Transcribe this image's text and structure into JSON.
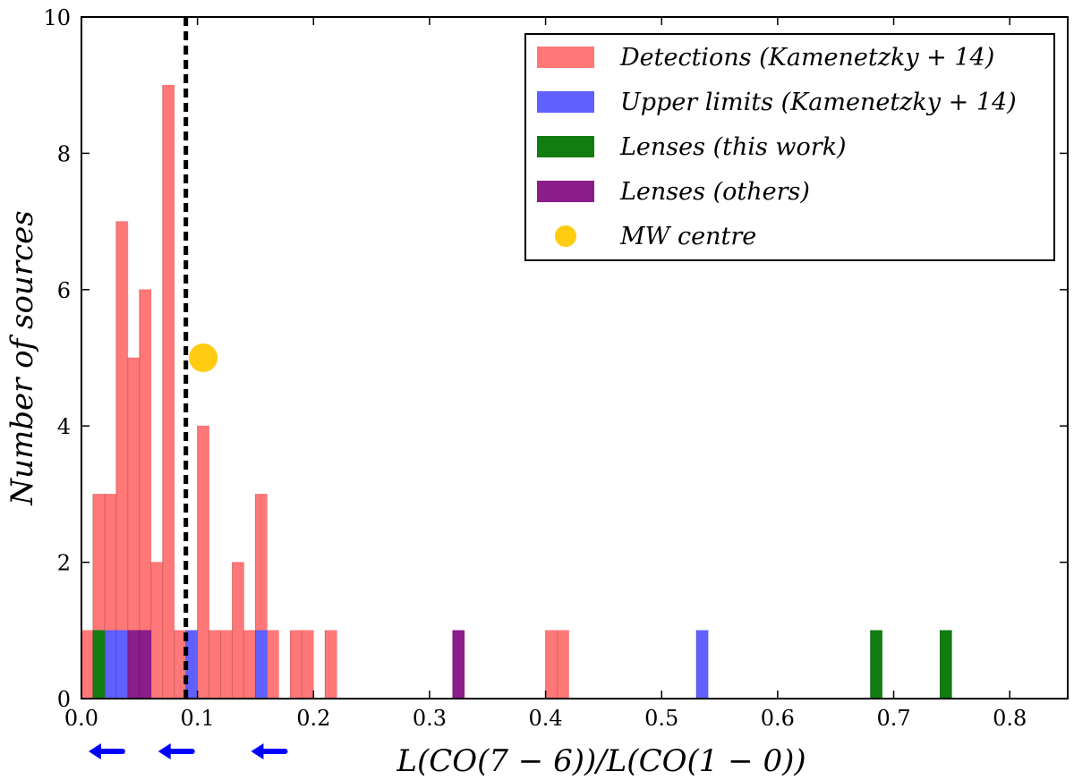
{
  "chart_data": {
    "type": "bar",
    "xlabel": "L(CO(7 − 6))/L(CO(1 − 0))",
    "ylabel": "Number of sources",
    "xlim": [
      0.0,
      0.85
    ],
    "ylim": [
      0,
      10
    ],
    "xticks": [
      "0.0",
      "0.1",
      "0.2",
      "0.3",
      "0.4",
      "0.5",
      "0.6",
      "0.7",
      "0.8"
    ],
    "xtick_values": [
      0.0,
      0.1,
      0.2,
      0.3,
      0.4,
      0.5,
      0.6,
      0.7,
      0.8
    ],
    "yticks": [
      "0",
      "2",
      "4",
      "6",
      "8",
      "10"
    ],
    "ytick_values": [
      0,
      2,
      4,
      6,
      8,
      10
    ],
    "bin_width": 0.01,
    "grid": false,
    "legend_position": "top-right",
    "series": [
      {
        "name": "Detections (Kamenetzky + 14)",
        "color": "#ff7777",
        "bins": [
          {
            "x": 0.0,
            "y": 1
          },
          {
            "x": 0.01,
            "y": 3
          },
          {
            "x": 0.02,
            "y": 3
          },
          {
            "x": 0.03,
            "y": 7
          },
          {
            "x": 0.04,
            "y": 5
          },
          {
            "x": 0.05,
            "y": 6
          },
          {
            "x": 0.06,
            "y": 2
          },
          {
            "x": 0.07,
            "y": 9
          },
          {
            "x": 0.08,
            "y": 1
          },
          {
            "x": 0.1,
            "y": 4
          },
          {
            "x": 0.11,
            "y": 1
          },
          {
            "x": 0.12,
            "y": 1
          },
          {
            "x": 0.13,
            "y": 2
          },
          {
            "x": 0.14,
            "y": 1
          },
          {
            "x": 0.15,
            "y": 3
          },
          {
            "x": 0.16,
            "y": 1
          },
          {
            "x": 0.18,
            "y": 1
          },
          {
            "x": 0.19,
            "y": 1
          },
          {
            "x": 0.21,
            "y": 1
          },
          {
            "x": 0.4,
            "y": 1
          },
          {
            "x": 0.41,
            "y": 1
          }
        ]
      },
      {
        "name": "Upper limits (Kamenetzky + 14)",
        "color": "#6060ff",
        "bins": [
          {
            "x": 0.02,
            "y": 1
          },
          {
            "x": 0.03,
            "y": 1
          },
          {
            "x": 0.09,
            "y": 1
          },
          {
            "x": 0.15,
            "y": 1
          },
          {
            "x": 0.53,
            "y": 1
          }
        ]
      },
      {
        "name": "Lenses (this work)",
        "color": "#117d11",
        "bins": [
          {
            "x": 0.01,
            "y": 1
          },
          {
            "x": 0.68,
            "y": 1
          },
          {
            "x": 0.74,
            "y": 1
          }
        ]
      },
      {
        "name": "Lenses (others)",
        "color": "#8b1d8b",
        "bins": [
          {
            "x": 0.04,
            "y": 1
          },
          {
            "x": 0.05,
            "y": 1
          },
          {
            "x": 0.32,
            "y": 1
          }
        ]
      }
    ],
    "markers": [
      {
        "name": "MW centre",
        "x": 0.105,
        "y": 5,
        "color": "#ffcc11"
      }
    ],
    "reference_line": {
      "x": 0.09,
      "style": "dashed",
      "color": "#000000"
    },
    "upper_limit_arrows": [
      {
        "x": 0.02,
        "color": "#0000ff"
      },
      {
        "x": 0.08,
        "color": "#0000ff"
      },
      {
        "x": 0.16,
        "color": "#0000ff"
      }
    ],
    "legend": [
      {
        "label": "Detections (Kamenetzky + 14)",
        "swatch": "rect",
        "color": "#ff7777"
      },
      {
        "label": "Upper limits (Kamenetzky + 14)",
        "swatch": "rect",
        "color": "#6060ff"
      },
      {
        "label": "Lenses (this work)",
        "swatch": "rect",
        "color": "#117d11"
      },
      {
        "label": "Lenses (others)",
        "swatch": "rect",
        "color": "#8b1d8b"
      },
      {
        "label": "MW centre",
        "swatch": "circle",
        "color": "#ffcc11"
      }
    ]
  }
}
